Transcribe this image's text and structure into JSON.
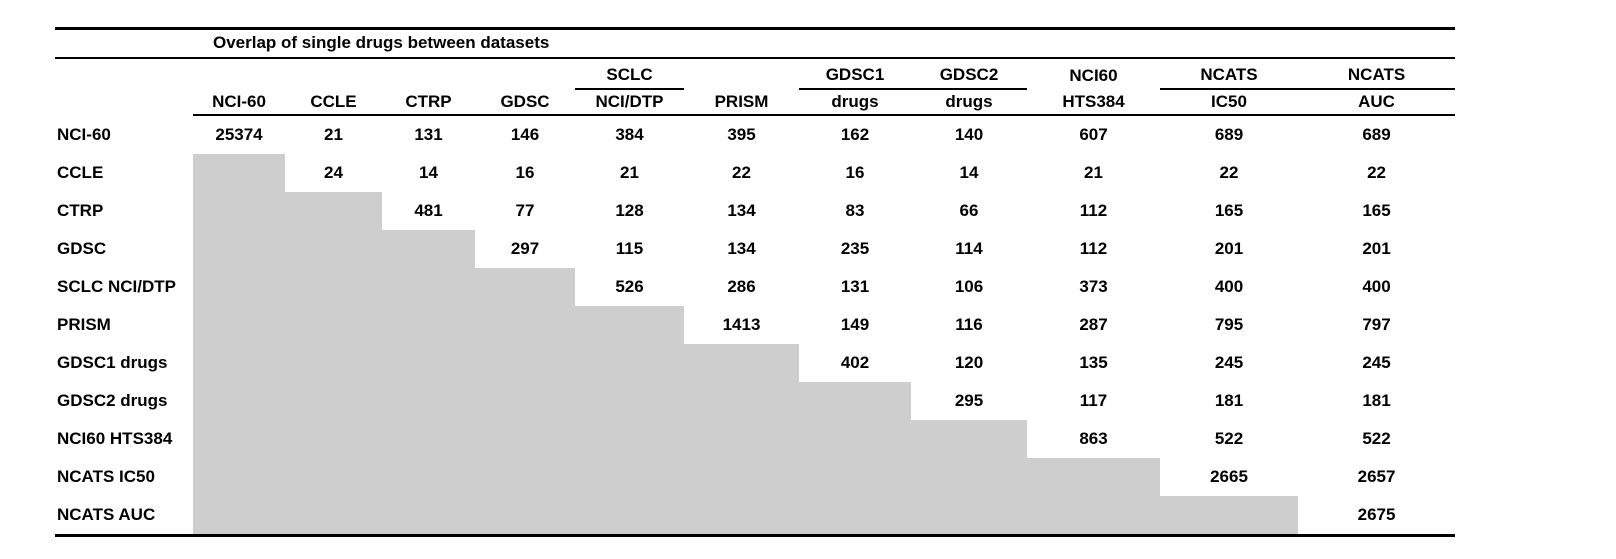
{
  "title": "Overlap of single drugs between datasets",
  "columns": [
    {
      "top": "",
      "label": "NCI-60",
      "underline": false
    },
    {
      "top": "",
      "label": "CCLE",
      "underline": false
    },
    {
      "top": "",
      "label": "CTRP",
      "underline": false
    },
    {
      "top": "",
      "label": "GDSC",
      "underline": false
    },
    {
      "top": "SCLC",
      "label": "NCI/DTP",
      "underline": true
    },
    {
      "top": "",
      "label": "PRISM",
      "underline": false
    },
    {
      "top": "GDSC1",
      "label": "drugs",
      "underline": true
    },
    {
      "top": "GDSC2",
      "label": "drugs",
      "underline": true
    },
    {
      "top": "NCI60",
      "label": "HTS384",
      "underline": false
    },
    {
      "top": "NCATS",
      "label": "IC50",
      "underline": true
    },
    {
      "top": "NCATS",
      "label": "AUC",
      "underline": true
    }
  ],
  "rows": [
    {
      "label": "NCI-60",
      "values": [
        25374,
        21,
        131,
        146,
        384,
        395,
        162,
        140,
        607,
        689,
        689
      ]
    },
    {
      "label": "CCLE",
      "values": [
        null,
        24,
        14,
        16,
        21,
        22,
        16,
        14,
        21,
        22,
        22
      ]
    },
    {
      "label": "CTRP",
      "values": [
        null,
        null,
        481,
        77,
        128,
        134,
        83,
        66,
        112,
        165,
        165
      ]
    },
    {
      "label": "GDSC",
      "values": [
        null,
        null,
        null,
        297,
        115,
        134,
        235,
        114,
        112,
        201,
        201
      ]
    },
    {
      "label": "SCLC NCI/DTP",
      "values": [
        null,
        null,
        null,
        null,
        526,
        286,
        131,
        106,
        373,
        400,
        400
      ]
    },
    {
      "label": "PRISM",
      "values": [
        null,
        null,
        null,
        null,
        null,
        1413,
        149,
        116,
        287,
        795,
        797
      ]
    },
    {
      "label": "GDSC1 drugs",
      "values": [
        null,
        null,
        null,
        null,
        null,
        null,
        402,
        120,
        135,
        245,
        245
      ]
    },
    {
      "label": "GDSC2 drugs",
      "values": [
        null,
        null,
        null,
        null,
        null,
        null,
        null,
        295,
        117,
        181,
        181
      ]
    },
    {
      "label": "NCI60 HTS384",
      "values": [
        null,
        null,
        null,
        null,
        null,
        null,
        null,
        null,
        863,
        522,
        522
      ]
    },
    {
      "label": "NCATS IC50",
      "values": [
        null,
        null,
        null,
        null,
        null,
        null,
        null,
        null,
        null,
        2665,
        2657
      ]
    },
    {
      "label": "NCATS AUC",
      "values": [
        null,
        null,
        null,
        null,
        null,
        null,
        null,
        null,
        null,
        null,
        2675
      ]
    }
  ],
  "colors": {
    "cell_gray": "#cecece",
    "rule_black": "#000000",
    "background": "#ffffff"
  }
}
